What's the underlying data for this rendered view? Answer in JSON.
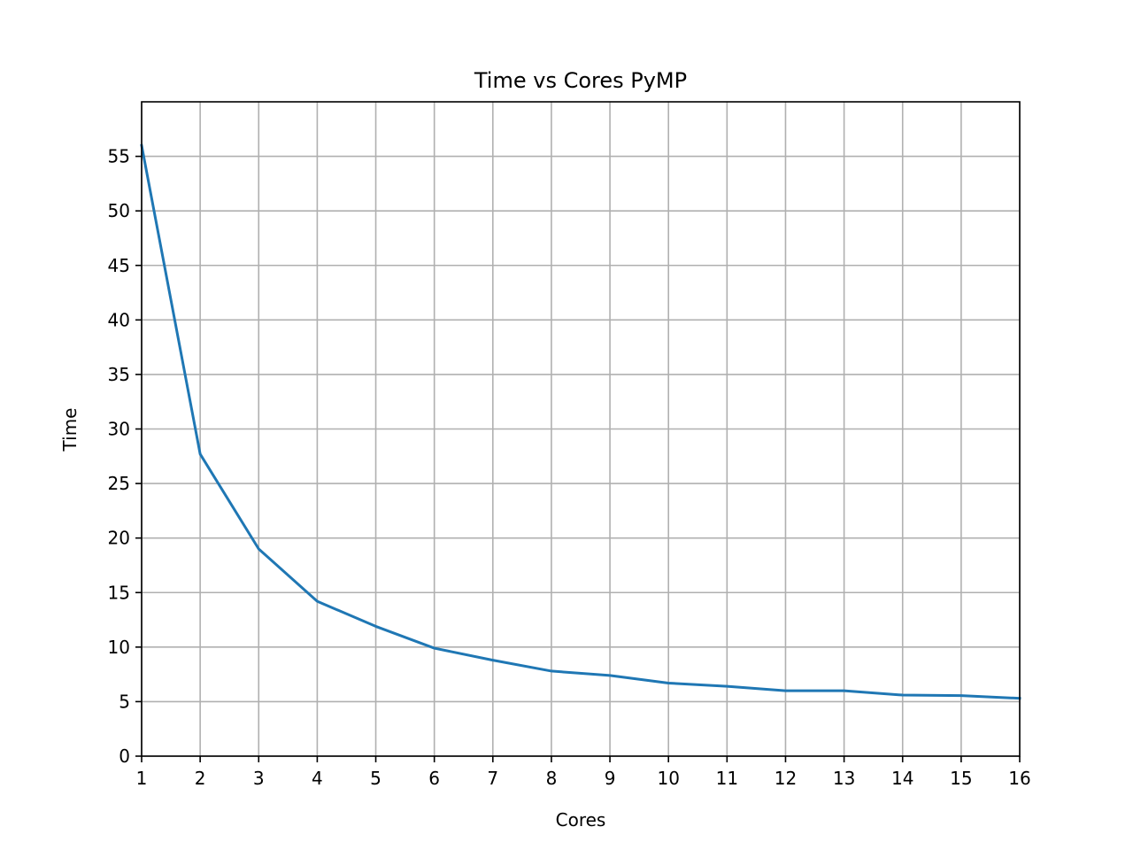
{
  "chart_data": {
    "type": "line",
    "title": "Time vs Cores PyMP",
    "xlabel": "Cores",
    "ylabel": "Time",
    "xlim": [
      1,
      16
    ],
    "ylim": [
      0,
      60
    ],
    "xticks": [
      1,
      2,
      3,
      4,
      5,
      6,
      7,
      8,
      9,
      10,
      11,
      12,
      13,
      14,
      15,
      16
    ],
    "yticks": [
      0,
      5,
      10,
      15,
      20,
      25,
      30,
      35,
      40,
      45,
      50,
      55
    ],
    "grid": true,
    "series": [
      {
        "color": "#1f77b4",
        "x": [
          1,
          2,
          3,
          4,
          5,
          6,
          7,
          8,
          9,
          10,
          11,
          12,
          13,
          14,
          15,
          16
        ],
        "y": [
          56.0,
          27.7,
          19.0,
          14.2,
          11.9,
          9.9,
          8.8,
          7.8,
          7.4,
          6.7,
          6.4,
          6.0,
          6.0,
          5.6,
          5.55,
          5.3
        ]
      }
    ]
  }
}
